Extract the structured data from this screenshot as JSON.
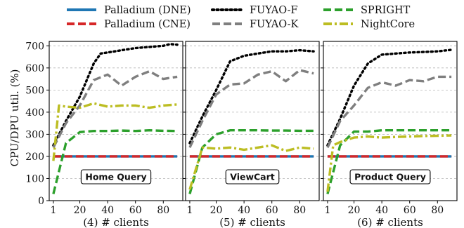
{
  "chart_data": [
    {
      "type": "line",
      "panel_label": "Home Query",
      "xlabel": "(4) # clients",
      "ylabel": "CPU/DPU util. (%)",
      "xlim": [
        -2,
        94
      ],
      "ylim": [
        0,
        720
      ],
      "x_ticks": [
        1,
        20,
        40,
        60,
        80
      ],
      "y_ticks": [
        0,
        100,
        200,
        300,
        400,
        500,
        600,
        700
      ],
      "grid": "horizontal dashed",
      "series": [
        {
          "name": "Palladium (DNE)",
          "color": "#1f77b4",
          "style": "solid",
          "x": [
            1,
            90
          ],
          "y": [
            200,
            200
          ]
        },
        {
          "name": "Palladium (CNE)",
          "color": "#d62728",
          "style": "dashed",
          "x": [
            1,
            90
          ],
          "y": [
            200,
            200
          ]
        },
        {
          "name": "FUYAO-F",
          "color": "#000000",
          "style": "dotted",
          "x": [
            1,
            10,
            20,
            30,
            35,
            40,
            50,
            60,
            70,
            80,
            85,
            90
          ],
          "y": [
            250,
            360,
            470,
            620,
            665,
            670,
            680,
            690,
            695,
            700,
            708,
            705
          ]
        },
        {
          "name": "FUYAO-K",
          "color": "#7f7f7f",
          "style": "dashed",
          "x": [
            1,
            10,
            20,
            30,
            40,
            50,
            60,
            70,
            80,
            90
          ],
          "y": [
            240,
            350,
            430,
            545,
            570,
            520,
            560,
            585,
            550,
            560
          ]
        },
        {
          "name": "SPRIGHT",
          "color": "#2ca02c",
          "style": "dashed",
          "x": [
            1,
            10,
            20,
            30,
            40,
            50,
            60,
            70,
            80,
            90
          ],
          "y": [
            30,
            260,
            310,
            315,
            315,
            317,
            315,
            318,
            316,
            315
          ]
        },
        {
          "name": "NightCore",
          "color": "#bcbd22",
          "style": "dashdot",
          "x": [
            1,
            5,
            10,
            20,
            30,
            40,
            50,
            60,
            70,
            80,
            90
          ],
          "y": [
            180,
            430,
            425,
            420,
            440,
            425,
            430,
            430,
            420,
            430,
            435
          ]
        }
      ]
    },
    {
      "type": "line",
      "panel_label": "ViewCart",
      "xlabel": "(5) # clients",
      "xlim": [
        -2,
        94
      ],
      "ylim": [
        0,
        720
      ],
      "x_ticks": [
        1,
        20,
        40,
        60,
        80
      ],
      "grid": "horizontal dashed",
      "series": [
        {
          "name": "Palladium (DNE)",
          "color": "#1f77b4",
          "style": "solid",
          "x": [
            1,
            90
          ],
          "y": [
            200,
            200
          ]
        },
        {
          "name": "Palladium (CNE)",
          "color": "#d62728",
          "style": "dashed",
          "x": [
            1,
            90
          ],
          "y": [
            200,
            200
          ]
        },
        {
          "name": "FUYAO-F",
          "color": "#000000",
          "style": "dotted",
          "x": [
            1,
            10,
            20,
            30,
            40,
            50,
            60,
            70,
            80,
            90
          ],
          "y": [
            260,
            380,
            500,
            630,
            655,
            665,
            675,
            675,
            680,
            675
          ]
        },
        {
          "name": "FUYAO-K",
          "color": "#7f7f7f",
          "style": "dashed",
          "x": [
            1,
            10,
            20,
            30,
            40,
            50,
            60,
            70,
            80,
            90
          ],
          "y": [
            240,
            360,
            480,
            525,
            530,
            570,
            585,
            540,
            590,
            575
          ]
        },
        {
          "name": "SPRIGHT",
          "color": "#2ca02c",
          "style": "dashed",
          "x": [
            1,
            10,
            20,
            30,
            40,
            50,
            60,
            70,
            80,
            90
          ],
          "y": [
            30,
            240,
            300,
            318,
            318,
            318,
            317,
            317,
            316,
            316
          ]
        },
        {
          "name": "NightCore",
          "color": "#bcbd22",
          "style": "dashdot",
          "x": [
            1,
            10,
            20,
            30,
            40,
            50,
            60,
            70,
            80,
            90
          ],
          "y": [
            50,
            240,
            235,
            240,
            230,
            240,
            250,
            225,
            240,
            235
          ]
        }
      ]
    },
    {
      "type": "line",
      "panel_label": "Product Query",
      "xlabel": "(6) # clients",
      "xlim": [
        -2,
        94
      ],
      "ylim": [
        0,
        720
      ],
      "x_ticks": [
        1,
        20,
        40,
        60,
        80
      ],
      "grid": "horizontal dashed",
      "series": [
        {
          "name": "Palladium (DNE)",
          "color": "#1f77b4",
          "style": "solid",
          "x": [
            1,
            90
          ],
          "y": [
            200,
            200
          ]
        },
        {
          "name": "Palladium (CNE)",
          "color": "#d62728",
          "style": "dashed",
          "x": [
            1,
            90
          ],
          "y": [
            200,
            200
          ]
        },
        {
          "name": "FUYAO-F",
          "color": "#000000",
          "style": "dotted",
          "x": [
            1,
            10,
            20,
            30,
            40,
            50,
            60,
            70,
            80,
            90
          ],
          "y": [
            250,
            370,
            520,
            620,
            660,
            665,
            670,
            672,
            675,
            682
          ]
        },
        {
          "name": "FUYAO-K",
          "color": "#7f7f7f",
          "style": "dashed",
          "x": [
            1,
            10,
            20,
            30,
            40,
            50,
            60,
            70,
            80,
            90
          ],
          "y": [
            240,
            360,
            430,
            510,
            535,
            520,
            545,
            540,
            560,
            560
          ]
        },
        {
          "name": "SPRIGHT",
          "color": "#2ca02c",
          "style": "dashed",
          "x": [
            1,
            10,
            20,
            30,
            40,
            50,
            60,
            70,
            80,
            90
          ],
          "y": [
            30,
            250,
            312,
            312,
            318,
            318,
            318,
            318,
            318,
            318
          ]
        },
        {
          "name": "NightCore",
          "color": "#bcbd22",
          "style": "dashdot",
          "x": [
            1,
            5,
            10,
            20,
            30,
            40,
            50,
            60,
            70,
            80,
            90
          ],
          "y": [
            40,
            250,
            265,
            285,
            290,
            285,
            288,
            290,
            292,
            293,
            295
          ]
        }
      ]
    }
  ],
  "legend": {
    "placement": "top",
    "entries": [
      {
        "label": "Palladium (DNE)",
        "color": "#1f77b4",
        "style": "solid"
      },
      {
        "label": "FUYAO-F",
        "color": "#000000",
        "style": "dotted"
      },
      {
        "label": "SPRIGHT",
        "color": "#2ca02c",
        "style": "dashed"
      },
      {
        "label": "Palladium (CNE)",
        "color": "#d62728",
        "style": "dashed"
      },
      {
        "label": "FUYAO-K",
        "color": "#7f7f7f",
        "style": "dashed"
      },
      {
        "label": "NightCore",
        "color": "#bcbd22",
        "style": "dashdot"
      }
    ]
  }
}
